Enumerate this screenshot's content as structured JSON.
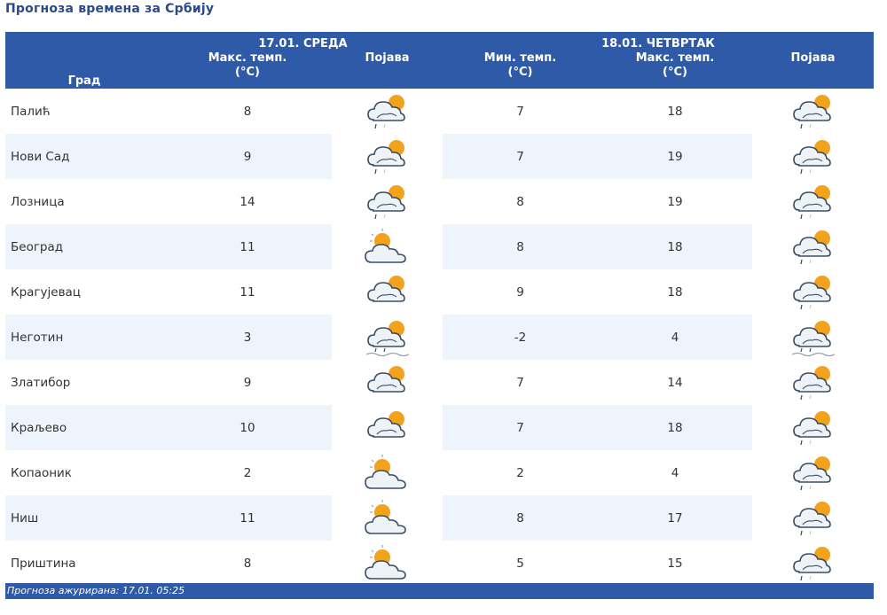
{
  "page_title": "Прогноза времена за Србију",
  "header": {
    "city_label": "Град",
    "day1": {
      "label": "17.01. СРЕДА",
      "max_label": "Макс. темп.",
      "unit": "(°C)",
      "phenomenon_label": "Појава"
    },
    "day2": {
      "label": "18.01. ЧЕТВРТАК",
      "min_label": "Мин. темп.",
      "max_label": "Макс. темп.",
      "unit": "(°C)",
      "phenomenon_label": "Појава"
    }
  },
  "rows": [
    {
      "city": "Палић",
      "d1_max": "8",
      "d1_icon": "cloud-rain-sun-icon",
      "d2_min": "7",
      "d2_max": "18",
      "d2_icon": "cloud-rain-sun-icon"
    },
    {
      "city": "Нови Сад",
      "d1_max": "9",
      "d1_icon": "cloud-rain-sun-icon",
      "d2_min": "7",
      "d2_max": "19",
      "d2_icon": "cloud-rain-sun-icon"
    },
    {
      "city": "Лозница",
      "d1_max": "14",
      "d1_icon": "cloud-rain-sun-icon",
      "d2_min": "8",
      "d2_max": "19",
      "d2_icon": "cloud-rain-sun-icon"
    },
    {
      "city": "Београд",
      "d1_max": "11",
      "d1_icon": "partly-cloudy-icon",
      "d2_min": "8",
      "d2_max": "18",
      "d2_icon": "cloud-rain-sun-icon"
    },
    {
      "city": "Крагујевац",
      "d1_max": "11",
      "d1_icon": "cloudy-sun-icon",
      "d2_min": "9",
      "d2_max": "18",
      "d2_icon": "cloud-rain-sun-icon"
    },
    {
      "city": "Неготин",
      "d1_max": "3",
      "d1_icon": "cloud-rain-fog-icon",
      "d2_min": "-2",
      "d2_max": "4",
      "d2_icon": "cloud-rain-fog-icon"
    },
    {
      "city": "Златибор",
      "d1_max": "9",
      "d1_icon": "cloudy-sun-icon",
      "d2_min": "7",
      "d2_max": "14",
      "d2_icon": "cloud-rain-sun-icon"
    },
    {
      "city": "Краљево",
      "d1_max": "10",
      "d1_icon": "cloudy-sun-icon",
      "d2_min": "7",
      "d2_max": "18",
      "d2_icon": "cloud-rain-sun-icon"
    },
    {
      "city": "Копаоник",
      "d1_max": "2",
      "d1_icon": "partly-cloudy-icon",
      "d2_min": "2",
      "d2_max": "4",
      "d2_icon": "cloud-rain-sun-icon"
    },
    {
      "city": "Ниш",
      "d1_max": "11",
      "d1_icon": "partly-cloudy-icon",
      "d2_min": "8",
      "d2_max": "17",
      "d2_icon": "cloud-rain-sun-icon"
    },
    {
      "city": "Приштина",
      "d1_max": "8",
      "d1_icon": "partly-cloudy-icon",
      "d2_min": "5",
      "d2_max": "15",
      "d2_icon": "cloud-rain-sun-icon"
    }
  ],
  "footer": {
    "text": "Прогноза ажурирана:  17.01. 05:25"
  },
  "colors": {
    "header_bg": "#2f5aa8",
    "title": "#2a4a8c",
    "row_alt": "#edf4fb",
    "sun": "#f3a21c",
    "cloud_outline": "#3c4e63"
  }
}
